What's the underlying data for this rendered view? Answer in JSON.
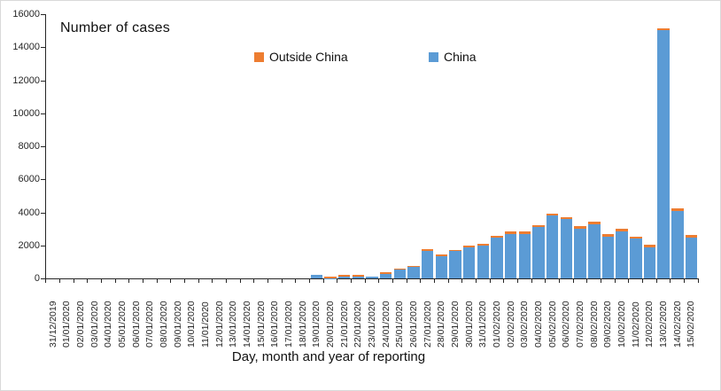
{
  "chart_data": {
    "type": "bar",
    "stacked": true,
    "title": "Number of cases",
    "xlabel": "Day, month and year of reporting",
    "ylabel": "Number of cases",
    "ylim": [
      0,
      16000
    ],
    "ytick_step": 2000,
    "yticks": [
      0,
      2000,
      4000,
      6000,
      8000,
      10000,
      12000,
      14000,
      16000
    ],
    "grid": false,
    "legend_position": "top-center",
    "categories": [
      "31/12/2019",
      "01/01/2020",
      "02/01/2020",
      "03/01/2020",
      "04/01/2020",
      "05/01/2020",
      "06/01/2020",
      "07/01/2020",
      "08/01/2020",
      "09/01/2020",
      "10/01/2020",
      "11/01/2020",
      "12/01/2020",
      "13/01/2020",
      "14/01/2020",
      "15/01/2020",
      "16/01/2020",
      "17/01/2020",
      "18/01/2020",
      "19/01/2020",
      "20/01/2020",
      "21/01/2020",
      "22/01/2020",
      "23/01/2020",
      "24/01/2020",
      "25/01/2020",
      "26/01/2020",
      "27/01/2020",
      "28/01/2020",
      "29/01/2020",
      "30/01/2020",
      "31/01/2020",
      "01/02/2020",
      "02/02/2020",
      "03/02/2020",
      "04/02/2020",
      "05/02/2020",
      "06/02/2020",
      "07/02/2020",
      "08/02/2020",
      "09/02/2020",
      "10/02/2020",
      "11/02/2020",
      "12/02/2020",
      "13/02/2020",
      "14/02/2020",
      "15/02/2020"
    ],
    "series": [
      {
        "name": "Outside China",
        "color": "#ED7D31",
        "values": [
          0,
          0,
          0,
          0,
          0,
          0,
          0,
          0,
          0,
          0,
          0,
          0,
          0,
          0,
          0,
          0,
          0,
          0,
          0,
          0,
          90,
          105,
          100,
          0,
          90,
          70,
          60,
          120,
          100,
          90,
          110,
          120,
          120,
          130,
          130,
          140,
          140,
          140,
          140,
          140,
          135,
          140,
          135,
          135,
          140,
          140,
          140
        ]
      },
      {
        "name": "China",
        "color": "#5B9BD5",
        "values": [
          0,
          0,
          0,
          0,
          0,
          0,
          0,
          0,
          0,
          0,
          0,
          0,
          0,
          0,
          0,
          0,
          0,
          0,
          0,
          200,
          20,
          110,
          110,
          90,
          270,
          520,
          680,
          1650,
          1360,
          1650,
          1870,
          1980,
          2480,
          2700,
          2690,
          3100,
          3785,
          3580,
          3025,
          3300,
          2540,
          2860,
          2410,
          1900,
          15010,
          4075,
          2480
        ]
      }
    ]
  },
  "style": {
    "axis_color": "#262626",
    "text_color": "#111111",
    "border_color": "#D9D9D9",
    "background": "#FFFFFF"
  }
}
